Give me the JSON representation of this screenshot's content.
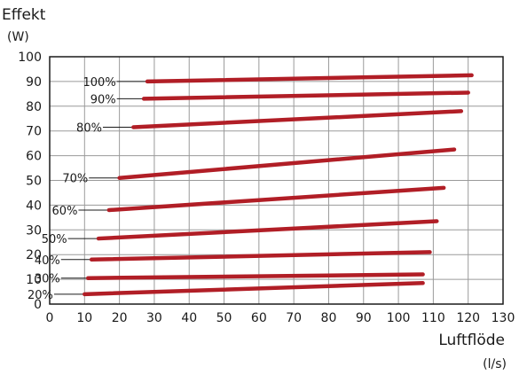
{
  "chart_data": {
    "type": "line",
    "title": "Effekt",
    "ylabel_unit": "(W)",
    "xlabel": "Luftflöde",
    "xlabel_unit": "(l/s)",
    "xlim": [
      0,
      130
    ],
    "ylim": [
      0,
      100
    ],
    "xticks": [
      0,
      10,
      20,
      30,
      40,
      50,
      60,
      70,
      80,
      90,
      100,
      110,
      120,
      130
    ],
    "yticks": [
      0,
      10,
      20,
      30,
      40,
      50,
      60,
      70,
      80,
      90,
      100
    ],
    "grid": true,
    "series_color": "#b11e26",
    "series": [
      {
        "name": "100%",
        "x": [
          28,
          121
        ],
        "y": [
          90,
          92.5
        ]
      },
      {
        "name": "90%",
        "x": [
          27,
          120
        ],
        "y": [
          83,
          85.5
        ]
      },
      {
        "name": "80%",
        "x": [
          24,
          118
        ],
        "y": [
          71.5,
          78
        ]
      },
      {
        "name": "70%",
        "x": [
          20,
          116
        ],
        "y": [
          51,
          62.5
        ]
      },
      {
        "name": "60%",
        "x": [
          17,
          113
        ],
        "y": [
          38,
          47
        ]
      },
      {
        "name": "50%",
        "x": [
          14,
          111
        ],
        "y": [
          26.5,
          33.5
        ]
      },
      {
        "name": "40%",
        "x": [
          12,
          109
        ],
        "y": [
          18,
          21
        ]
      },
      {
        "name": "30%",
        "x": [
          11,
          107
        ],
        "y": [
          10.5,
          12
        ]
      },
      {
        "name": "20%",
        "x": [
          10,
          107
        ],
        "y": [
          4,
          8.5
        ]
      }
    ],
    "label_anchors": [
      {
        "name": "100%",
        "x": 19
      },
      {
        "name": "90%",
        "x": 19
      },
      {
        "name": "80%",
        "x": 15
      },
      {
        "name": "70%",
        "x": 11
      },
      {
        "name": "60%",
        "x": 8
      },
      {
        "name": "50%",
        "x": 5
      },
      {
        "name": "40%",
        "x": 3
      },
      {
        "name": "30%",
        "x": 3
      },
      {
        "name": "20%",
        "x": 1
      }
    ]
  }
}
